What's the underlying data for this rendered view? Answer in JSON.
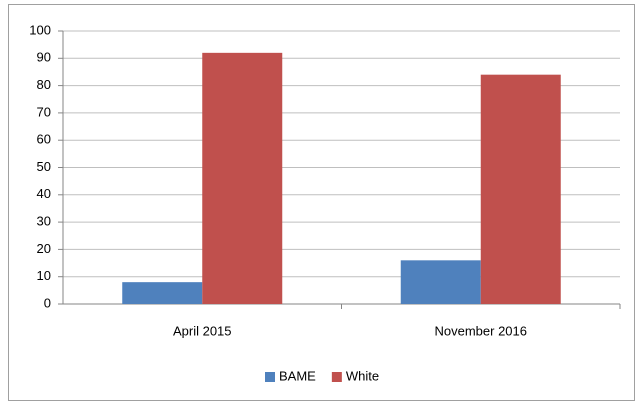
{
  "chart_data": {
    "type": "bar",
    "categories": [
      "April 2015",
      "November 2016"
    ],
    "series": [
      {
        "name": "BAME",
        "color": "#4f81bd",
        "values": [
          8,
          16
        ]
      },
      {
        "name": "White",
        "color": "#c0504d",
        "values": [
          92,
          84
        ]
      }
    ],
    "ylim": [
      0,
      100
    ],
    "yticks": [
      0,
      10,
      20,
      30,
      40,
      50,
      60,
      70,
      80,
      90,
      100
    ],
    "grid": true,
    "legend": "bottom"
  }
}
